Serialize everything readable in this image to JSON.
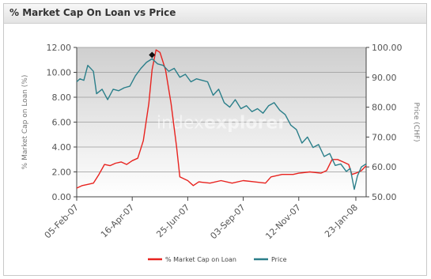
{
  "panel": {
    "title": "% Market Cap On Loan vs Price"
  },
  "watermark": {
    "part1": "index",
    "part2": "explorer"
  },
  "colors": {
    "loan": "#e8231f",
    "price": "#2b7f8a",
    "grid": "#9a9a9a"
  },
  "chart_data": {
    "type": "line",
    "x_tick_labels": [
      "05-Feb-07",
      "16-Apr-07",
      "25-Jun-07",
      "03-Sep-07",
      "12-Nov-07",
      "23-Jan-08"
    ],
    "x_tick_dates": [
      "2007-02-05",
      "2007-04-16",
      "2007-06-25",
      "2007-09-03",
      "2007-11-12",
      "2008-01-23"
    ],
    "xlim": [
      "2007-02-05",
      "2008-02-05"
    ],
    "y_left": {
      "label": "% Market Cap on Loan (%)",
      "ylim": [
        0,
        12
      ],
      "ticks": [
        "0.00",
        "2.00",
        "4.00",
        "6.00",
        "8.00",
        "10.00",
        "12.00"
      ]
    },
    "y_right": {
      "label": "Price (CHF)",
      "ylim": [
        50,
        100
      ],
      "ticks": [
        "50.00",
        "60.00",
        "70.00",
        "80.00",
        "90.00",
        "100.00"
      ]
    },
    "grid": true,
    "legend_placement": "bottom",
    "series": [
      {
        "name": "% Market Cap on Loan",
        "axis": "left",
        "points": [
          [
            "2007-02-05",
            0.7
          ],
          [
            "2007-02-12",
            0.9
          ],
          [
            "2007-02-19",
            1.0
          ],
          [
            "2007-02-26",
            1.1
          ],
          [
            "2007-03-05",
            1.8
          ],
          [
            "2007-03-12",
            2.6
          ],
          [
            "2007-03-19",
            2.5
          ],
          [
            "2007-03-26",
            2.7
          ],
          [
            "2007-04-02",
            2.8
          ],
          [
            "2007-04-09",
            2.6
          ],
          [
            "2007-04-16",
            2.9
          ],
          [
            "2007-04-23",
            3.1
          ],
          [
            "2007-04-30",
            4.5
          ],
          [
            "2007-05-07",
            7.5
          ],
          [
            "2007-05-11",
            10.2
          ],
          [
            "2007-05-16",
            11.8
          ],
          [
            "2007-05-21",
            11.6
          ],
          [
            "2007-05-28",
            10.2
          ],
          [
            "2007-06-04",
            7.5
          ],
          [
            "2007-06-11",
            4.0
          ],
          [
            "2007-06-15",
            1.6
          ],
          [
            "2007-06-25",
            1.3
          ],
          [
            "2007-07-02",
            0.9
          ],
          [
            "2007-07-09",
            1.2
          ],
          [
            "2007-07-23",
            1.1
          ],
          [
            "2007-08-06",
            1.3
          ],
          [
            "2007-08-20",
            1.1
          ],
          [
            "2007-09-03",
            1.3
          ],
          [
            "2007-09-17",
            1.2
          ],
          [
            "2007-10-01",
            1.1
          ],
          [
            "2007-10-08",
            1.6
          ],
          [
            "2007-10-22",
            1.8
          ],
          [
            "2007-11-05",
            1.8
          ],
          [
            "2007-11-12",
            1.9
          ],
          [
            "2007-11-26",
            2.0
          ],
          [
            "2007-12-10",
            1.9
          ],
          [
            "2007-12-17",
            2.1
          ],
          [
            "2007-12-24",
            3.0
          ],
          [
            "2007-12-31",
            3.0
          ],
          [
            "2008-01-07",
            2.8
          ],
          [
            "2008-01-14",
            2.6
          ],
          [
            "2008-01-18",
            1.8
          ],
          [
            "2008-01-23",
            1.9
          ],
          [
            "2008-01-30",
            2.1
          ],
          [
            "2008-02-05",
            2.5
          ]
        ]
      },
      {
        "name": "Price",
        "axis": "right",
        "points": [
          [
            "2007-02-05",
            88.5
          ],
          [
            "2007-02-09",
            89.5
          ],
          [
            "2007-02-14",
            89.0
          ],
          [
            "2007-02-19",
            94.0
          ],
          [
            "2007-02-26",
            92.0
          ],
          [
            "2007-03-02",
            84.5
          ],
          [
            "2007-03-09",
            86.0
          ],
          [
            "2007-03-16",
            82.5
          ],
          [
            "2007-03-23",
            86.0
          ],
          [
            "2007-03-30",
            85.5
          ],
          [
            "2007-04-06",
            86.5
          ],
          [
            "2007-04-13",
            87.0
          ],
          [
            "2007-04-20",
            90.5
          ],
          [
            "2007-04-27",
            93.0
          ],
          [
            "2007-05-04",
            95.0
          ],
          [
            "2007-05-11",
            96.2
          ],
          [
            "2007-05-18",
            94.5
          ],
          [
            "2007-05-25",
            94.0
          ],
          [
            "2007-06-01",
            92.0
          ],
          [
            "2007-06-08",
            93.0
          ],
          [
            "2007-06-15",
            90.0
          ],
          [
            "2007-06-22",
            91.0
          ],
          [
            "2007-06-29",
            88.5
          ],
          [
            "2007-07-06",
            89.5
          ],
          [
            "2007-07-13",
            89.0
          ],
          [
            "2007-07-20",
            88.5
          ],
          [
            "2007-07-27",
            84.0
          ],
          [
            "2007-08-03",
            86.0
          ],
          [
            "2007-08-10",
            81.5
          ],
          [
            "2007-08-17",
            80.0
          ],
          [
            "2007-08-24",
            82.5
          ],
          [
            "2007-08-31",
            79.5
          ],
          [
            "2007-09-07",
            80.5
          ],
          [
            "2007-09-14",
            78.5
          ],
          [
            "2007-09-21",
            79.5
          ],
          [
            "2007-09-28",
            78.0
          ],
          [
            "2007-10-05",
            80.5
          ],
          [
            "2007-10-12",
            81.5
          ],
          [
            "2007-10-19",
            79.0
          ],
          [
            "2007-10-26",
            77.5
          ],
          [
            "2007-11-02",
            74.0
          ],
          [
            "2007-11-09",
            72.5
          ],
          [
            "2007-11-16",
            68.0
          ],
          [
            "2007-11-23",
            70.0
          ],
          [
            "2007-11-30",
            66.5
          ],
          [
            "2007-12-07",
            67.5
          ],
          [
            "2007-12-14",
            63.5
          ],
          [
            "2007-12-21",
            64.5
          ],
          [
            "2007-12-28",
            60.5
          ],
          [
            "2008-01-04",
            61.0
          ],
          [
            "2008-01-11",
            58.5
          ],
          [
            "2008-01-16",
            59.5
          ],
          [
            "2008-01-21",
            52.5
          ],
          [
            "2008-01-25",
            57.0
          ],
          [
            "2008-01-30",
            60.0
          ],
          [
            "2008-02-05",
            61.0
          ]
        ]
      }
    ],
    "marker": {
      "date": "2007-05-11",
      "value": 11.4,
      "axis": "left"
    }
  }
}
